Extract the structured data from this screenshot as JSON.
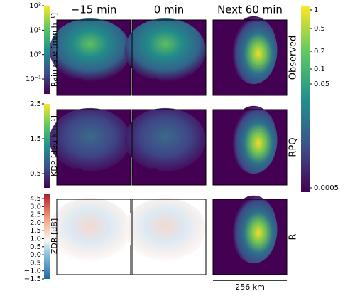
{
  "columns": [
    "−15 min",
    "0 min",
    "Next 60 min"
  ],
  "rows": [
    "Observed",
    "RPQ",
    "R"
  ],
  "colorbars": [
    {
      "label": "Rain rate [mm h⁻¹]",
      "ticks": [
        "10²",
        "10¹",
        "10⁰",
        "10⁻¹"
      ]
    },
    {
      "label": "KDP [deg km⁻¹]",
      "ticks": [
        "2.5",
        "1.5",
        "0.5"
      ]
    },
    {
      "label": "ZDR [dB]",
      "ticks": [
        "4.5",
        "3.0",
        "2.5",
        "2.0",
        "1.5",
        "1.0",
        "0.5",
        "0.0",
        "−0.5",
        "−1.0",
        "−1.5"
      ]
    },
    {
      "ticks": [
        "1",
        "0.5",
        "0.2",
        "0.1",
        "0.05",
        "0.0005"
      ]
    }
  ],
  "scale_bar": "256 km"
}
